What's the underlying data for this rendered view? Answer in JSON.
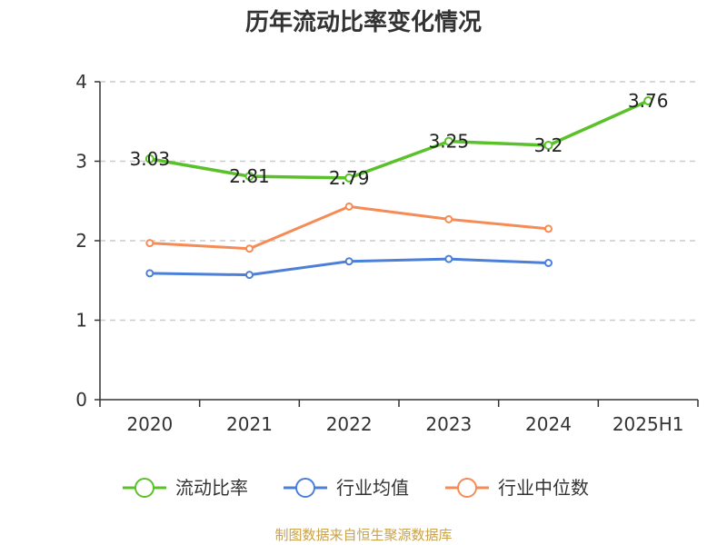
{
  "chart_data": {
    "type": "line",
    "title": "历年流动比率变化情况",
    "categories": [
      "2020",
      "2021",
      "2022",
      "2023",
      "2024",
      "2025H1"
    ],
    "ylim": [
      0,
      4
    ],
    "yticks": [
      0,
      1,
      2,
      3,
      4
    ],
    "grid": true,
    "legend_position": "bottom",
    "series": [
      {
        "name": "流动比率",
        "color": "#5ac12b",
        "values": [
          3.03,
          2.81,
          2.79,
          3.25,
          3.2,
          3.76
        ],
        "labels": [
          "3.03",
          "2.81",
          "2.79",
          "3.25",
          "3.2",
          "3.76"
        ]
      },
      {
        "name": "行业均值",
        "color": "#4c7fd8",
        "values": [
          1.59,
          1.57,
          1.74,
          1.77,
          1.72,
          null
        ]
      },
      {
        "name": "行业中位数",
        "color": "#f58b55",
        "values": [
          1.97,
          1.9,
          2.43,
          2.27,
          2.15,
          null
        ]
      }
    ]
  },
  "source": {
    "text": "制图数据来自恒生聚源数据库",
    "color": "#c9a24a"
  }
}
